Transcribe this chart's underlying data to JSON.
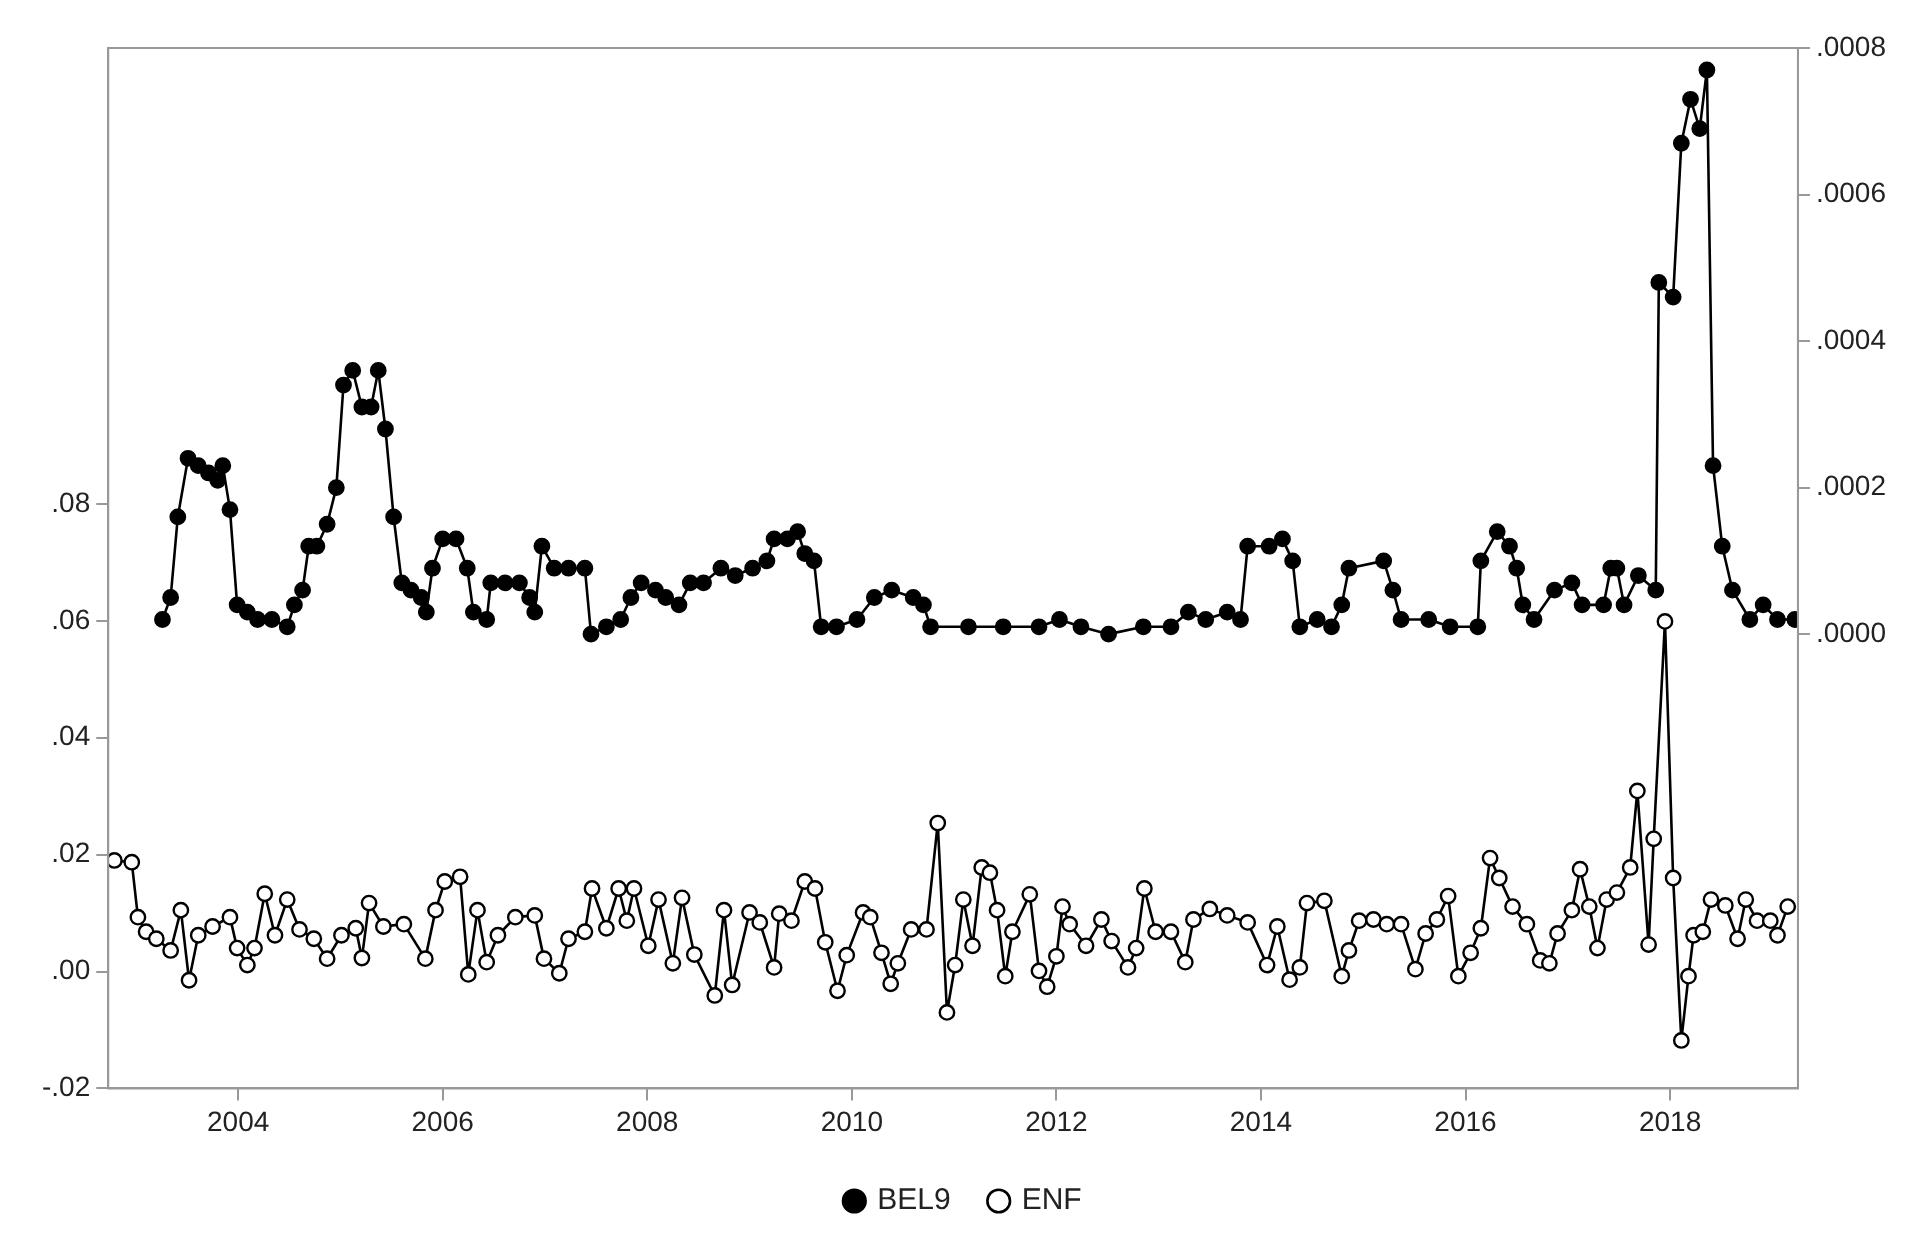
{
  "chart_data": {
    "type": "line",
    "xlim": [
      2002.73,
      2019.25
    ],
    "xticks": [
      {
        "value": 2004,
        "label": "2004"
      },
      {
        "value": 2006,
        "label": "2006"
      },
      {
        "value": 2008,
        "label": "2008"
      },
      {
        "value": 2010,
        "label": "2010"
      },
      {
        "value": 2012,
        "label": "2012"
      },
      {
        "value": 2014,
        "label": "2014"
      },
      {
        "value": 2016,
        "label": "2016"
      },
      {
        "value": 2018,
        "label": "2018"
      }
    ],
    "ylim": [
      -0.02,
      0.158
    ],
    "yticks": [
      {
        "value": -0.02,
        "label": "-.02"
      },
      {
        "value": 0,
        "label": ".00"
      },
      {
        "value": 0.02,
        "label": ".02"
      },
      {
        "value": 0.04,
        "label": ".04"
      },
      {
        "value": 0.06,
        "label": ".06"
      },
      {
        "value": 0.08,
        "label": ".08"
      }
    ],
    "y2lim": [
      -0.00062,
      0.0008
    ],
    "y2ticks": [
      {
        "value": 0,
        "label": ".0000"
      },
      {
        "value": 0.0002,
        "label": ".0002"
      },
      {
        "value": 0.0004,
        "label": ".0004"
      },
      {
        "value": 0.0006,
        "label": ".0006"
      },
      {
        "value": 0.0008,
        "label": ".0008"
      }
    ],
    "grid": false,
    "legend": "bottom",
    "marker": "circle",
    "line_style": "solid",
    "series": [
      {
        "name": "BEL9",
        "color": "#000000",
        "axis": "y2",
        "x": [
          2003.26,
          2003.34,
          2003.41,
          2003.51,
          2003.61,
          2003.71,
          2003.8,
          2003.85,
          2003.92,
          2003.99,
          2004.09,
          2004.19,
          2004.33,
          2004.48,
          2004.55,
          2004.63,
          2004.69,
          2004.77,
          2004.87,
          2004.96,
          2005.03,
          2005.12,
          2005.21,
          2005.3,
          2005.37,
          2005.44,
          2005.52,
          2005.6,
          2005.69,
          2005.79,
          2005.84,
          2005.9,
          2006.0,
          2006.13,
          2006.24,
          2006.3,
          2006.43,
          2006.47,
          2006.61,
          2006.75,
          2006.85,
          2006.9,
          2006.97,
          2007.09,
          2007.23,
          2007.39,
          2007.45,
          2007.6,
          2007.74,
          2007.84,
          2007.94,
          2008.08,
          2008.18,
          2008.31,
          2008.42,
          2008.55,
          2008.72,
          2008.86,
          2009.03,
          2009.17,
          2009.24,
          2009.37,
          2009.47,
          2009.54,
          2009.63,
          2009.7,
          2009.85,
          2010.05,
          2010.22,
          2010.39,
          2010.6,
          2010.7,
          2010.77,
          2011.14,
          2011.48,
          2011.83,
          2012.03,
          2012.24,
          2012.51,
          2012.85,
          2013.12,
          2013.29,
          2013.46,
          2013.67,
          2013.8,
          2013.87,
          2014.08,
          2014.21,
          2014.31,
          2014.38,
          2014.55,
          2014.69,
          2014.79,
          2014.86,
          2015.2,
          2015.29,
          2015.37,
          2015.64,
          2015.85,
          2016.12,
          2016.15,
          2016.31,
          2016.43,
          2016.5,
          2016.56,
          2016.67,
          2016.87,
          2017.04,
          2017.14,
          2017.35,
          2017.42,
          2017.48,
          2017.55,
          2017.69,
          2017.86,
          2017.89,
          2018.03,
          2018.11,
          2018.2,
          2018.29,
          2018.36,
          2018.42,
          2018.51,
          2018.61,
          2018.78,
          2018.91,
          2019.05,
          2019.22
        ],
        "values": [
          2e-05,
          5e-05,
          0.00016,
          0.00024,
          0.00023,
          0.00022,
          0.00021,
          0.00023,
          0.00017,
          4e-05,
          3e-05,
          2e-05,
          2e-05,
          1e-05,
          4e-05,
          6e-05,
          0.00012,
          0.00012,
          0.00015,
          0.0002,
          0.00034,
          0.00036,
          0.00031,
          0.00031,
          0.00036,
          0.00028,
          0.00016,
          7e-05,
          6e-05,
          5e-05,
          3e-05,
          9e-05,
          0.00013,
          0.00013,
          9e-05,
          3e-05,
          2e-05,
          7e-05,
          7e-05,
          7e-05,
          5e-05,
          3e-05,
          0.00012,
          9e-05,
          9e-05,
          9e-05,
          0,
          1e-05,
          2e-05,
          5e-05,
          7e-05,
          6e-05,
          5e-05,
          4e-05,
          7e-05,
          7e-05,
          9e-05,
          8e-05,
          9e-05,
          0.0001,
          0.00013,
          0.00013,
          0.00014,
          0.00011,
          0.0001,
          1e-05,
          1e-05,
          2e-05,
          5e-05,
          6e-05,
          5e-05,
          4e-05,
          1e-05,
          1e-05,
          1e-05,
          1e-05,
          2e-05,
          1e-05,
          0,
          1e-05,
          1e-05,
          3e-05,
          2e-05,
          3e-05,
          2e-05,
          0.00012,
          0.00012,
          0.00013,
          0.0001,
          1e-05,
          2e-05,
          1e-05,
          4e-05,
          9e-05,
          0.0001,
          6e-05,
          2e-05,
          2e-05,
          1e-05,
          1e-05,
          0.0001,
          0.00014,
          0.00012,
          9e-05,
          4e-05,
          2e-05,
          6e-05,
          7e-05,
          4e-05,
          4e-05,
          9e-05,
          9e-05,
          4e-05,
          8e-05,
          6e-05,
          0.00048,
          0.00046,
          0.00067,
          0.00073,
          0.00069,
          0.00077,
          0.00023,
          0.00012,
          6e-05,
          2e-05,
          4e-05,
          2e-05,
          2e-05
        ]
      },
      {
        "name": "ENF",
        "color": "#000000",
        "axis": "y",
        "x": [
          2002.79,
          2002.96,
          2003.02,
          2003.1,
          2003.2,
          2003.34,
          2003.44,
          2003.52,
          2003.61,
          2003.75,
          2003.92,
          2003.99,
          2004.09,
          2004.16,
          2004.26,
          2004.36,
          2004.48,
          2004.6,
          2004.74,
          2004.87,
          2005.01,
          2005.15,
          2005.21,
          2005.28,
          2005.42,
          2005.62,
          2005.83,
          2005.93,
          2006.02,
          2006.17,
          2006.25,
          2006.34,
          2006.43,
          2006.54,
          2006.71,
          2006.9,
          2006.99,
          2007.14,
          2007.23,
          2007.39,
          2007.46,
          2007.6,
          2007.72,
          2007.8,
          2007.87,
          2008.01,
          2008.11,
          2008.25,
          2008.34,
          2008.46,
          2008.66,
          2008.75,
          2008.83,
          2009.0,
          2009.1,
          2009.24,
          2009.29,
          2009.41,
          2009.54,
          2009.64,
          2009.74,
          2009.86,
          2009.95,
          2010.11,
          2010.18,
          2010.29,
          2010.38,
          2010.45,
          2010.58,
          2010.73,
          2010.84,
          2010.93,
          2011.01,
          2011.09,
          2011.18,
          2011.27,
          2011.35,
          2011.42,
          2011.5,
          2011.57,
          2011.74,
          2011.83,
          2011.91,
          2012.0,
          2012.06,
          2012.13,
          2012.29,
          2012.44,
          2012.54,
          2012.7,
          2012.78,
          2012.86,
          2012.97,
          2013.12,
          2013.26,
          2013.34,
          2013.5,
          2013.67,
          2013.87,
          2014.06,
          2014.16,
          2014.28,
          2014.38,
          2014.45,
          2014.62,
          2014.79,
          2014.86,
          2014.96,
          2015.1,
          2015.23,
          2015.37,
          2015.51,
          2015.61,
          2015.72,
          2015.83,
          2015.93,
          2016.05,
          2016.15,
          2016.24,
          2016.33,
          2016.46,
          2016.6,
          2016.73,
          2016.82,
          2016.9,
          2017.04,
          2017.12,
          2017.21,
          2017.29,
          2017.38,
          2017.48,
          2017.61,
          2017.68,
          2017.79,
          2017.84,
          2017.95,
          2018.03,
          2018.11,
          2018.18,
          2018.23,
          2018.32,
          2018.4,
          2018.54,
          2018.66,
          2018.74,
          2018.85,
          2018.98,
          2019.05,
          2019.15
        ],
        "values": [
          0.019,
          0.0187,
          0.0093,
          0.0068,
          0.0056,
          0.0036,
          0.0105,
          -0.0015,
          0.0062,
          0.0077,
          0.0093,
          0.004,
          0.0011,
          0.004,
          0.0133,
          0.0062,
          0.0123,
          0.0072,
          0.0056,
          0.0022,
          0.0062,
          0.0074,
          0.0023,
          0.0117,
          0.0077,
          0.0081,
          0.0022,
          0.0105,
          0.0154,
          0.0162,
          -0.0005,
          0.0105,
          0.0016,
          0.0062,
          0.0093,
          0.0096,
          0.0022,
          -0.0003,
          0.0056,
          0.0068,
          0.0142,
          0.0074,
          0.0142,
          0.0087,
          0.0142,
          0.0044,
          0.0123,
          0.0014,
          0.0126,
          0.0029,
          -0.0041,
          0.0105,
          -0.0023,
          0.0101,
          0.0084,
          0.0007,
          0.0099,
          0.0087,
          0.0154,
          0.0142,
          0.005,
          -0.0033,
          0.0028,
          0.0101,
          0.0093,
          0.0032,
          -0.0021,
          0.0014,
          0.0072,
          0.0072,
          0.0254,
          -0.007,
          0.0011,
          0.0123,
          0.0044,
          0.0178,
          0.0169,
          0.0105,
          -0.0008,
          0.0068,
          0.0132,
          0.0001,
          -0.0026,
          0.0026,
          0.0111,
          0.0081,
          0.0044,
          0.0089,
          0.0052,
          0.0007,
          0.004,
          0.0142,
          0.0068,
          0.0068,
          0.0016,
          0.0089,
          0.0107,
          0.0096,
          0.0084,
          0.0011,
          0.0077,
          -0.0014,
          0.0007,
          0.0117,
          0.0121,
          -0.0008,
          0.0036,
          0.0087,
          0.0089,
          0.0081,
          0.0081,
          0.0004,
          0.0065,
          0.0089,
          0.0129,
          -0.0008,
          0.0032,
          0.0074,
          0.0194,
          0.016,
          0.0111,
          0.0081,
          0.0019,
          0.0014,
          0.0065,
          0.0105,
          0.0175,
          0.0111,
          0.004,
          0.0123,
          0.0135,
          0.0178,
          0.0309,
          0.0046,
          0.0227,
          0.0599,
          0.016,
          -0.0118,
          -0.0008,
          0.0062,
          0.0068,
          0.0123,
          0.0113,
          0.0056,
          0.0123,
          0.0087,
          0.0087,
          0.0062,
          0.0111
        ]
      }
    ]
  }
}
